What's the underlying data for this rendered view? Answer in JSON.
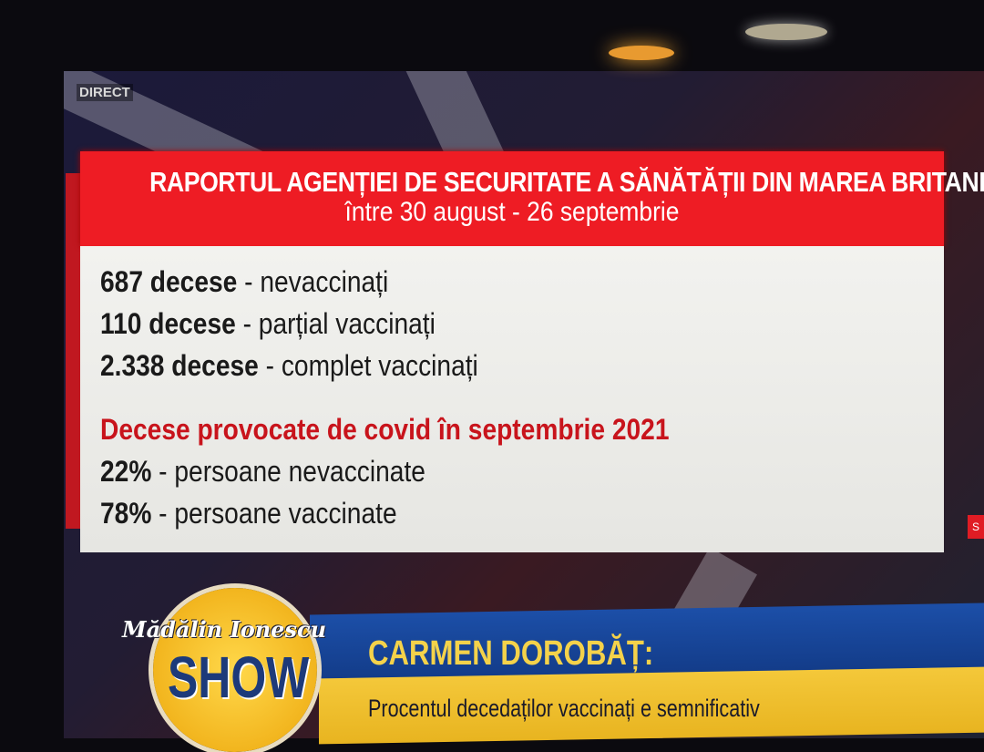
{
  "badge": {
    "live": "DIRECT"
  },
  "report": {
    "title": "RAPORTUL AGENȚIEI DE SECURITATE A SĂNĂTĂȚII DIN MAREA BRITANIE",
    "period": "între 30 august - 26 septembrie",
    "stats": [
      {
        "count": "687 decese",
        "desc": "- nevaccinați"
      },
      {
        "count": "110 decese",
        "desc": "- parțial vaccinați"
      },
      {
        "count": "2.338 decese",
        "desc": "- complet vaccinați"
      }
    ],
    "section_title": "Decese provocate de covid în septembrie 2021",
    "percentages": [
      {
        "value": "22%",
        "desc": "- persoane nevaccinate"
      },
      {
        "value": "78%",
        "desc": "- persoane vaccinate"
      }
    ]
  },
  "show_logo": {
    "script": "Mădălin Ionescu",
    "show": "SHOW"
  },
  "lower_third": {
    "name": "CARMEN DOROBĂȚ:",
    "caption": "Procentul decedaților vaccinați e semnificativ"
  },
  "side_tab": "S",
  "colors": {
    "header_red": "#ee1c24",
    "section_red": "#c8141c",
    "ticker_blue": "#1c4fa8",
    "ticker_yellow": "#f4c83a"
  }
}
